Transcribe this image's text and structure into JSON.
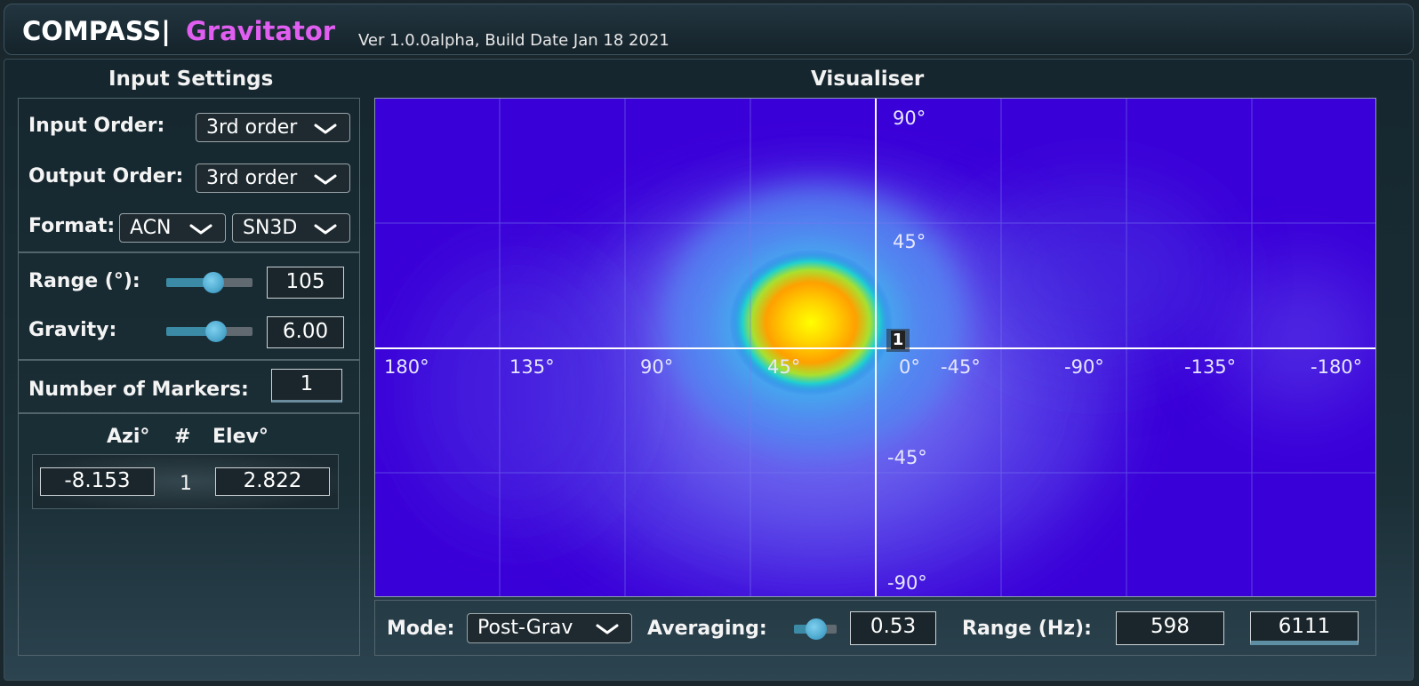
{
  "header": {
    "brand_main": "COMPASS|",
    "brand_sub": "Gravitator",
    "version": "Ver 1.0.0alpha, Build Date Jan 18 2021"
  },
  "input_settings": {
    "title": "Input Settings",
    "input_order_label": "Input Order:",
    "input_order_value": "3rd order",
    "output_order_label": "Output Order:",
    "output_order_value": "3rd order",
    "format_label": "Format:",
    "format_channel_order": "ACN",
    "format_normalisation": "SN3D",
    "range_label": "Range (°):",
    "range_value": "105",
    "range_slider_fraction": 0.55,
    "gravity_label": "Gravity:",
    "gravity_value": "6.00",
    "gravity_slider_fraction": 0.58,
    "num_markers_label": "Number of Markers:",
    "num_markers_value": "1",
    "markers_table": {
      "headers": [
        "Azi°",
        "#",
        "Elev°"
      ],
      "rows": [
        {
          "azi": "-8.153",
          "index": "1",
          "elev": "2.822"
        }
      ]
    }
  },
  "visualiser": {
    "title": "Visualiser",
    "azimuth_labels": [
      "180°",
      "135°",
      "90°",
      "45°",
      "0°",
      "-45°",
      "-90°",
      "-135°",
      "-180°"
    ],
    "elevation_labels": [
      "90°",
      "45°",
      "-45°",
      "-90°"
    ],
    "markers": [
      {
        "label": "1",
        "azimuth": -8.153,
        "elevation": 2.822
      }
    ],
    "peak": {
      "azimuth": 22,
      "elevation": 8
    },
    "background_color": "#3a00d8"
  },
  "controls": {
    "mode_label": "Mode:",
    "mode_value": "Post-Grav",
    "averaging_label": "Averaging:",
    "averaging_value": "0.53",
    "averaging_slider_fraction": 0.53,
    "range_hz_label": "Range (Hz):",
    "range_hz_low": "598",
    "range_hz_high": "6111"
  }
}
